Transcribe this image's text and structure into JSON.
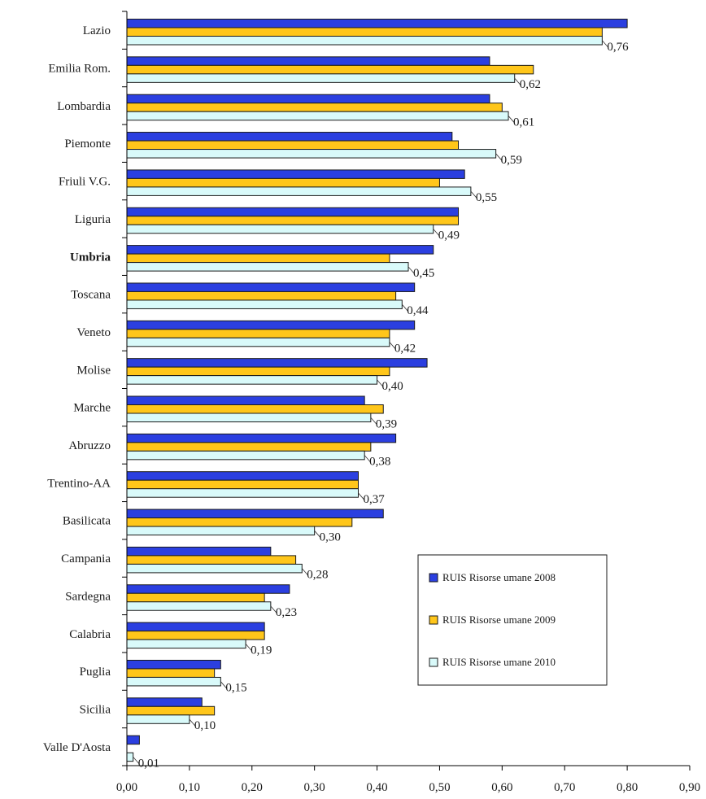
{
  "chart_data": {
    "type": "bar",
    "orientation": "horizontal",
    "title": "",
    "xlabel": "",
    "ylabel": "",
    "xlim": [
      0,
      0.9
    ],
    "x_ticks": [
      "0,00",
      "0,10",
      "0,20",
      "0,30",
      "0,40",
      "0,50",
      "0,60",
      "0,70",
      "0,80",
      "0,90"
    ],
    "grid": false,
    "legend_position": "bottom-right",
    "categories": [
      "Lazio",
      "Emilia Rom.",
      "Lombardia",
      "Piemonte",
      "Friuli V.G.",
      "Liguria",
      "Umbria",
      "Toscana",
      "Veneto",
      "Molise",
      "Marche",
      "Abruzzo",
      "Trentino-AA",
      "Basilicata",
      "Campania",
      "Sardegna",
      "Calabria",
      "Puglia",
      "Sicilia",
      "Valle D'Aosta"
    ],
    "series": [
      {
        "name": "RUIS Risorse umane 2008",
        "color": "#2b3fe0",
        "values": [
          0.8,
          0.58,
          0.58,
          0.52,
          0.54,
          0.53,
          0.49,
          0.46,
          0.46,
          0.48,
          0.38,
          0.43,
          0.37,
          0.41,
          0.23,
          0.26,
          0.22,
          0.15,
          0.12,
          0.02
        ]
      },
      {
        "name": "RUIS Risorse umane 2009",
        "color": "#ffc61a",
        "values": [
          0.76,
          0.65,
          0.6,
          0.53,
          0.5,
          0.53,
          0.42,
          0.43,
          0.42,
          0.42,
          0.41,
          0.39,
          0.37,
          0.36,
          0.27,
          0.22,
          0.22,
          0.14,
          0.14,
          0.0
        ]
      },
      {
        "name": "RUIS Risorse umane 2010",
        "color": "#d9fafa",
        "values": [
          0.76,
          0.62,
          0.61,
          0.59,
          0.55,
          0.49,
          0.45,
          0.44,
          0.42,
          0.4,
          0.39,
          0.38,
          0.37,
          0.3,
          0.28,
          0.23,
          0.19,
          0.15,
          0.1,
          0.01
        ]
      }
    ],
    "data_labels": [
      "0,76",
      "0,62",
      "0,61",
      "0,59",
      "0,55",
      "0,49",
      "0,45",
      "0,44",
      "0,42",
      "0,40",
      "0,39",
      "0,38",
      "0,37",
      "0,30",
      "0,28",
      "0,23",
      "0,19",
      "0,15",
      "0,10",
      "0,01"
    ],
    "bold_categories": [
      "Umbria"
    ]
  }
}
